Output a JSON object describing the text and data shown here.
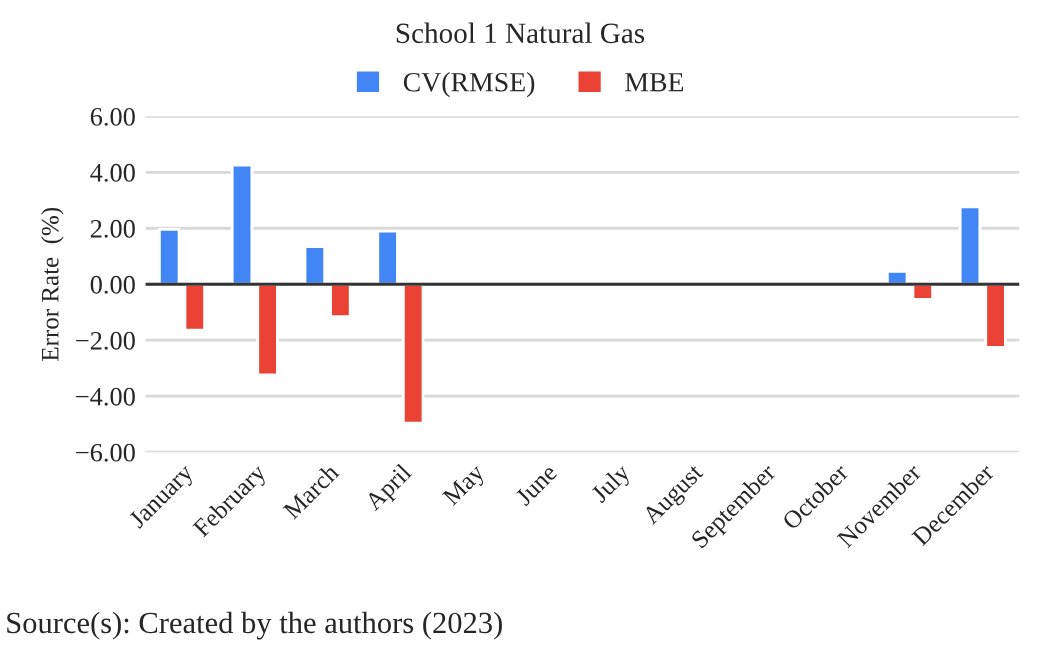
{
  "chart_data": {
    "type": "bar",
    "title": "School 1 Natural Gas",
    "ylabel": "Error Rate  (%)",
    "categories": [
      "January",
      "February",
      "March",
      "April",
      "May",
      "June",
      "July",
      "August",
      "September",
      "October",
      "November",
      "December"
    ],
    "series": [
      {
        "name": "CV(RMSE)",
        "color": "#4285f4",
        "values": [
          1.96,
          4.26,
          1.34,
          1.9,
          null,
          null,
          null,
          null,
          null,
          null,
          0.46,
          2.76
        ]
      },
      {
        "name": "MBE",
        "color": "#ea4335",
        "values": [
          -1.64,
          -3.24,
          -1.16,
          -4.96,
          null,
          null,
          null,
          null,
          null,
          null,
          -0.54,
          -2.26
        ]
      }
    ],
    "ylim": [
      -6,
      6
    ],
    "yticks": [
      {
        "value": -6,
        "label": "−6.00"
      },
      {
        "value": -4,
        "label": "−4.00"
      },
      {
        "value": -2,
        "label": "−2.00"
      },
      {
        "value": 0,
        "label": "0.00"
      },
      {
        "value": 2,
        "label": "2.00"
      },
      {
        "value": 4,
        "label": "4.00"
      },
      {
        "value": 6,
        "label": "6.00"
      }
    ],
    "ref_lines": [
      {
        "axis": "y",
        "value": 0,
        "color": "#333333"
      }
    ],
    "grid": "y",
    "legend": "top",
    "annotations": [
      "Source(s): Created by the authors (2023)"
    ]
  }
}
